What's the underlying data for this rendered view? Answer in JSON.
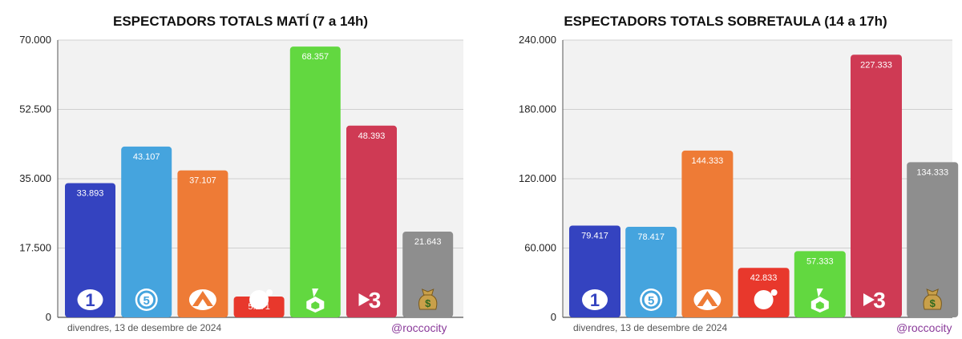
{
  "footer": {
    "date": "divendres, 13 de desembre de 2024",
    "handle": "@roccocity"
  },
  "chart_data": [
    {
      "type": "bar",
      "title": "ESPECTADORS TOTALS MATÍ (7 a 14h)",
      "xlabel": "",
      "ylabel": "",
      "ylim": [
        0,
        70000
      ],
      "yticks": [
        "0",
        "17.500",
        "35.000",
        "52.500",
        "70.000"
      ],
      "grid": true,
      "categories": [
        "La 1",
        "Telecinco",
        "Antena 3",
        "Cuatro",
        "laSexta",
        "TV3",
        "Altres"
      ],
      "icons": [
        "la1-logo-icon",
        "telecinco-logo-icon",
        "antena3-logo-icon",
        "cuatro-logo-icon",
        "lasexta-logo-icon",
        "tv3-logo-icon",
        "money-bag-icon"
      ],
      "colors": [
        "#3443c0",
        "#45a4de",
        "#ee7b36",
        "#e8382c",
        "#62d840",
        "#cf3a54",
        "#8e8e8e"
      ],
      "values": [
        33893,
        43107,
        37107,
        5271,
        68357,
        48393,
        21643
      ],
      "value_labels": [
        "33.893",
        "43.107",
        "37.107",
        "5.271",
        "68.357",
        "48.393",
        "21.643"
      ]
    },
    {
      "type": "bar",
      "title": "ESPECTADORS TOTALS SOBRETAULA (14 a 17h)",
      "xlabel": "",
      "ylabel": "",
      "ylim": [
        0,
        240000
      ],
      "yticks": [
        "0",
        "60.000",
        "120.000",
        "180.000",
        "240.000"
      ],
      "grid": true,
      "categories": [
        "La 1",
        "Telecinco",
        "Antena 3",
        "Cuatro",
        "laSexta",
        "TV3",
        "Altres"
      ],
      "icons": [
        "la1-logo-icon",
        "telecinco-logo-icon",
        "antena3-logo-icon",
        "cuatro-logo-icon",
        "lasexta-logo-icon",
        "tv3-logo-icon",
        "money-bag-icon"
      ],
      "colors": [
        "#3443c0",
        "#45a4de",
        "#ee7b36",
        "#e8382c",
        "#62d840",
        "#cf3a54",
        "#8e8e8e"
      ],
      "values": [
        79417,
        78417,
        144333,
        42833,
        57333,
        227333,
        134333
      ],
      "value_labels": [
        "79.417",
        "78.417",
        "144.333",
        "42.833",
        "57.333",
        "227.333",
        "134.333"
      ]
    }
  ]
}
